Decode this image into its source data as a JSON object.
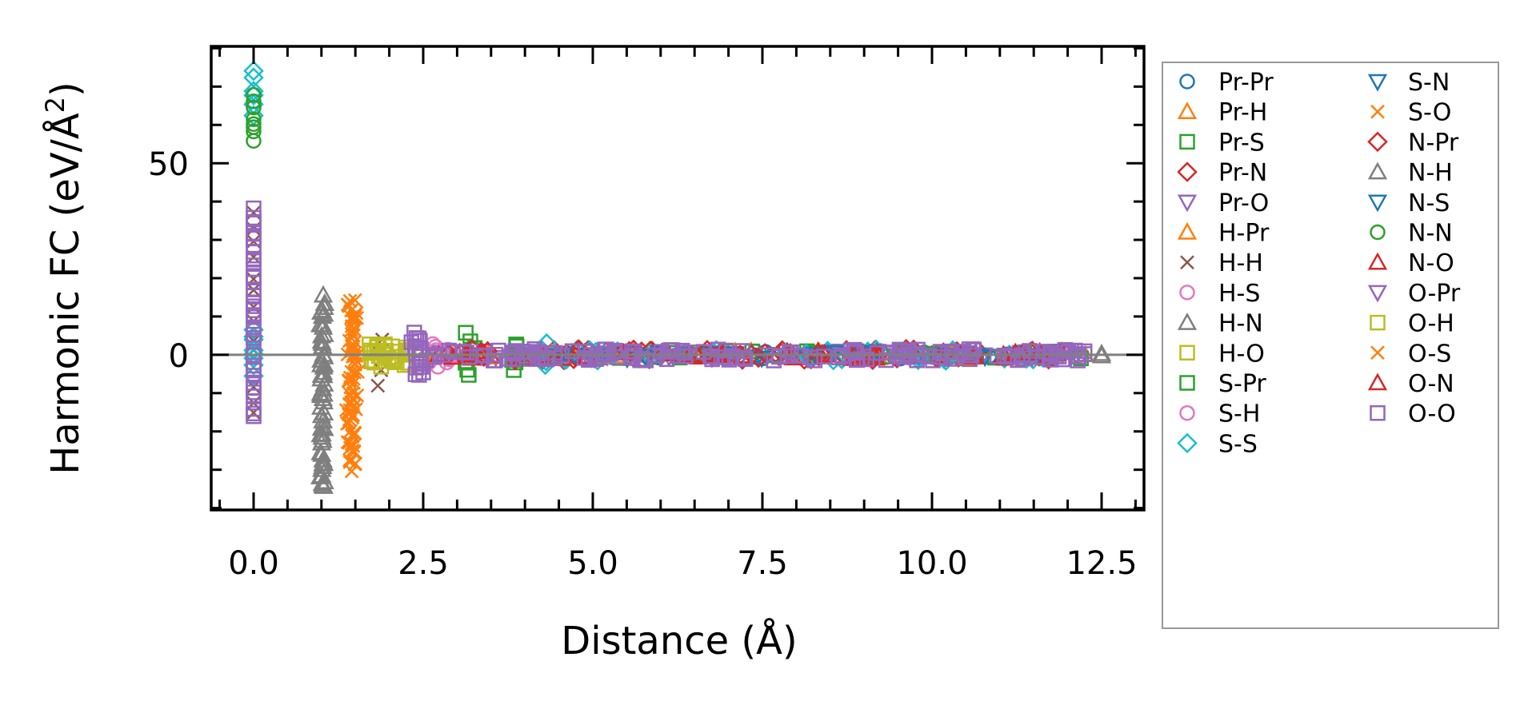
{
  "chart_data": {
    "type": "scatter",
    "title": "",
    "xlabel": "Distance (Å)",
    "ylabel": "Harmonic FC (eV/Å²)",
    "ylabel_main": "Harmonic FC (eV/Å",
    "ylabel_sup": "2",
    "ylabel_end": ")",
    "xlim": [
      -0.625,
      13.125
    ],
    "ylim": [
      -40.5,
      80.5
    ],
    "xticks": [
      0.0,
      2.5,
      5.0,
      7.5,
      10.0,
      12.5
    ],
    "xtick_labels": [
      "0.0",
      "2.5",
      "5.0",
      "7.5",
      "10.0",
      "12.5"
    ],
    "yticks": [
      0,
      50
    ],
    "ytick_labels": [
      "0",
      "50"
    ],
    "x_minor_step": 0.5,
    "y_minor_step": 10,
    "grid": false,
    "reference_line_y": 0,
    "legend_position": "outside-right",
    "note_clusters": "each cluster: [xmin, xmax, ymin, ymax, count] in data units",
    "series": [
      {
        "name": "Pr-Pr",
        "color": "#1f77b4",
        "marker": "o",
        "clusters": [
          [
            3.8,
            12.4,
            -1,
            1,
            40
          ]
        ]
      },
      {
        "name": "Pr-H",
        "color": "#ff7f0e",
        "marker": "^",
        "clusters": [
          [
            2.6,
            12.3,
            -1,
            1,
            30
          ]
        ]
      },
      {
        "name": "Pr-S",
        "color": "#2ca02c",
        "marker": "s",
        "clusters": [
          [
            3.1,
            3.3,
            -5,
            5,
            8
          ],
          [
            3.8,
            3.9,
            -3,
            3,
            6
          ],
          [
            4,
            12.4,
            -1,
            1,
            25
          ]
        ]
      },
      {
        "name": "Pr-N",
        "color": "#d62728",
        "marker": "D",
        "clusters": [
          [
            2.8,
            12.3,
            -1.5,
            1.5,
            40
          ]
        ]
      },
      {
        "name": "Pr-O",
        "color": "#9467bd",
        "marker": "v",
        "clusters": [
          [
            2.4,
            12.2,
            -1,
            1,
            30
          ]
        ]
      },
      {
        "name": "H-Pr",
        "color": "#ff7f0e",
        "marker": "^",
        "clusters": [
          [
            2.5,
            12,
            -1,
            1,
            20
          ]
        ]
      },
      {
        "name": "H-H",
        "color": "#8c564b",
        "marker": "x",
        "clusters": [
          [
            0,
            0,
            -16,
            37,
            14
          ],
          [
            1.8,
            1.9,
            -8,
            4,
            4
          ]
        ]
      },
      {
        "name": "H-S",
        "color": "#e377c2",
        "marker": "o",
        "clusters": [
          [
            2.6,
            2.9,
            -3,
            3,
            8
          ],
          [
            3,
            12,
            -1,
            1,
            15
          ]
        ]
      },
      {
        "name": "H-N",
        "color": "#7f7f7f",
        "marker": "^",
        "clusters": [
          [
            0.98,
            1.05,
            -35,
            15,
            60
          ]
        ]
      },
      {
        "name": "H-O",
        "color": "#bcbd22",
        "marker": "s",
        "clusters": [
          [
            1.65,
            2.3,
            -3,
            3,
            20
          ]
        ]
      },
      {
        "name": "S-Pr",
        "color": "#2ca02c",
        "marker": "s",
        "clusters": [
          [
            3.2,
            12.4,
            -1,
            1,
            20
          ]
        ]
      },
      {
        "name": "S-H",
        "color": "#e377c2",
        "marker": "o",
        "clusters": [
          [
            2.5,
            2.9,
            -2,
            2,
            6
          ]
        ]
      },
      {
        "name": "S-S",
        "color": "#17becf",
        "marker": "D",
        "clusters": [
          [
            0,
            0,
            62,
            75,
            6
          ],
          [
            0,
            0,
            -5,
            7,
            8
          ],
          [
            4.2,
            4.4,
            -3,
            3,
            4
          ],
          [
            4.5,
            12.3,
            -1.5,
            1.5,
            40
          ]
        ]
      },
      {
        "name": "S-N",
        "color": "#1f77b4",
        "marker": "v",
        "clusters": [
          [
            3.5,
            12,
            -1,
            1,
            15
          ]
        ]
      },
      {
        "name": "S-O",
        "color": "#ff7f0e",
        "marker": "x",
        "clusters": [
          [
            1.4,
            1.5,
            -30,
            14,
            50
          ]
        ]
      },
      {
        "name": "N-Pr",
        "color": "#d62728",
        "marker": "D",
        "clusters": [
          [
            2.8,
            12.3,
            -1.5,
            1.5,
            30
          ]
        ]
      },
      {
        "name": "N-H",
        "color": "#7f7f7f",
        "marker": "^",
        "clusters": [
          [
            12.5,
            12.5,
            -0.5,
            0.5,
            2
          ]
        ]
      },
      {
        "name": "N-S",
        "color": "#1f77b4",
        "marker": "v",
        "clusters": [
          [
            3.6,
            12,
            -1,
            1,
            15
          ]
        ]
      },
      {
        "name": "N-N",
        "color": "#2ca02c",
        "marker": "o",
        "clusters": [
          [
            0,
            0,
            56,
            67,
            8
          ]
        ]
      },
      {
        "name": "N-O",
        "color": "#d62728",
        "marker": "^",
        "clusters": [
          [
            2.7,
            12.2,
            -1,
            1,
            30
          ]
        ]
      },
      {
        "name": "O-Pr",
        "color": "#9467bd",
        "marker": "v",
        "clusters": [
          [
            2.4,
            12.2,
            -1,
            1,
            20
          ]
        ]
      },
      {
        "name": "O-H",
        "color": "#bcbd22",
        "marker": "s",
        "clusters": [
          [
            1.7,
            2.3,
            -2,
            2,
            10
          ]
        ]
      },
      {
        "name": "O-S",
        "color": "#ff7f0e",
        "marker": "x",
        "clusters": [
          [
            1.35,
            1.55,
            -28,
            13,
            30
          ]
        ]
      },
      {
        "name": "O-N",
        "color": "#d62728",
        "marker": "^",
        "clusters": [
          [
            2.8,
            12.2,
            -1,
            1,
            25
          ]
        ]
      },
      {
        "name": "O-O",
        "color": "#9467bd",
        "marker": "s",
        "clusters": [
          [
            0,
            0,
            -16,
            38,
            40
          ],
          [
            2.3,
            2.5,
            -5,
            5,
            20
          ],
          [
            2.5,
            12.3,
            -1.5,
            1.5,
            150
          ]
        ]
      }
    ]
  }
}
